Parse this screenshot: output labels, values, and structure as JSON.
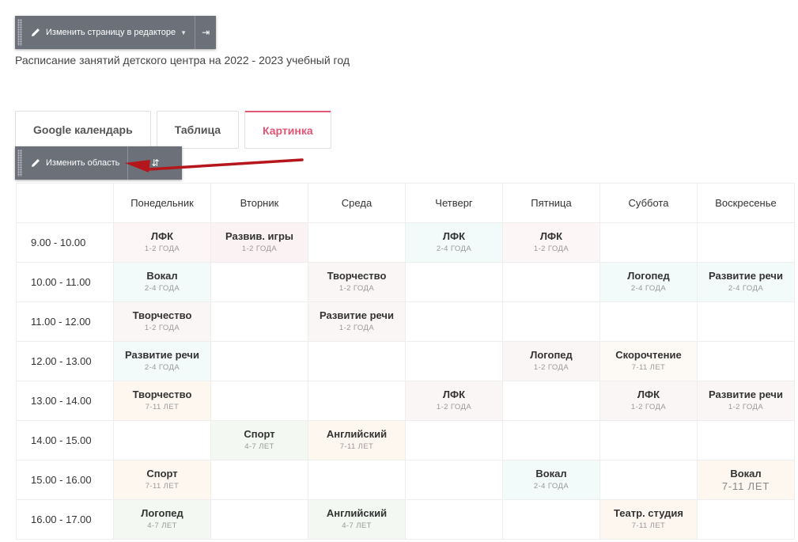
{
  "editor_bar": {
    "edit_page_label": "Изменить страницу в редакторе"
  },
  "area_bar": {
    "edit_area_label": "Изменить область"
  },
  "subtitle": "Расписание занятий детского центра на 2022 - 2023 учебный год",
  "tabs": [
    {
      "label": "Google календарь",
      "active": false
    },
    {
      "label": "Таблица",
      "active": false
    },
    {
      "label": "Картинка",
      "active": true
    }
  ],
  "colors": {
    "accent": "#e25575",
    "toolbar": "#6b7079",
    "arrow": "#b5161c"
  },
  "schedule": {
    "days": [
      "Понедельник",
      "Вторник",
      "Среда",
      "Четверг",
      "Пятница",
      "Суббота",
      "Воскресенье"
    ],
    "rows": [
      {
        "time": "9.00 - 10.00",
        "cells": [
          {
            "title": "ЛФК",
            "age": "1-2 ГОДА",
            "bg": "#fdf6f6"
          },
          {
            "title": "Развив. игры",
            "age": "1-2 ГОДА",
            "bg": "#fbf3f3"
          },
          null,
          {
            "title": "ЛФК",
            "age": "2-4 ГОДА",
            "bg": "#f2fafa"
          },
          {
            "title": "ЛФК",
            "age": "1-2 ГОДА",
            "bg": "#fdf6f6"
          },
          null,
          null
        ]
      },
      {
        "time": "10.00 - 11.00",
        "cells": [
          {
            "title": "Вокал",
            "age": "2-4 ГОДА",
            "bg": "#f2fafa"
          },
          null,
          {
            "title": "Творчество",
            "age": "1-2 ГОДА",
            "bg": "#fbf6f6"
          },
          null,
          null,
          {
            "title": "Логопед",
            "age": "2-4 ГОДА",
            "bg": "#f2fafa"
          },
          {
            "title": "Развитие речи",
            "age": "2-4 ГОДА",
            "bg": "#f3fafa"
          }
        ]
      },
      {
        "time": "11.00 - 12.00",
        "cells": [
          {
            "title": "Творчество",
            "age": "1-2 ГОДА",
            "bg": "#fbf6f6"
          },
          null,
          {
            "title": "Развитие речи",
            "age": "1-2 ГОДА",
            "bg": "#fbf6f6"
          },
          null,
          null,
          null,
          null
        ]
      },
      {
        "time": "12.00 - 13.00",
        "cells": [
          {
            "title": "Развитие речи",
            "age": "2-4 ГОДА",
            "bg": "#f2fafa"
          },
          null,
          null,
          null,
          {
            "title": "Логопед",
            "age": "1-2 ГОДА",
            "bg": "#fbf6f6"
          },
          {
            "title": "Скорочтение",
            "age": "7-11 ЛЕТ",
            "bg": "#fdfaf6"
          },
          null
        ]
      },
      {
        "time": "13.00 - 14.00",
        "cells": [
          {
            "title": "Творчество",
            "age": "7-11 ЛЕТ",
            "bg": "#fdf7f0"
          },
          null,
          null,
          {
            "title": "ЛФК",
            "age": "1-2 ГОДА",
            "bg": "#fbf6f6"
          },
          null,
          {
            "title": "ЛФК",
            "age": "1-2 ГОДА",
            "bg": "#fbf6f6"
          },
          {
            "title": "Развитие речи",
            "age": "1-2 ГОДА",
            "bg": "#fbf6f6"
          }
        ]
      },
      {
        "time": "14.00 - 15.00",
        "cells": [
          null,
          {
            "title": "Спорт",
            "age": "4-7 ЛЕТ",
            "bg": "#f3f8f3"
          },
          {
            "title": "Английский",
            "age": "7-11 ЛЕТ",
            "bg": "#fdf7f0"
          },
          null,
          null,
          null,
          null
        ]
      },
      {
        "time": "15.00 - 16.00",
        "cells": [
          {
            "title": "Спорт",
            "age": "7-11 ЛЕТ",
            "bg": "#fdf7f0"
          },
          null,
          null,
          null,
          {
            "title": "Вокал",
            "age": "2-4 ГОДА",
            "bg": "#f2fafa"
          },
          null,
          {
            "title": "Вокал",
            "age": "7-11 ЛЕТ",
            "bg": "#fdf7f0",
            "big": true
          }
        ]
      },
      {
        "time": "16.00 - 17.00",
        "cells": [
          {
            "title": "Логопед",
            "age": "4-7 ЛЕТ",
            "bg": "#f3f8f3"
          },
          null,
          {
            "title": "Английский",
            "age": "4-7 ЛЕТ",
            "bg": "#f3f8f3"
          },
          null,
          null,
          {
            "title": "Театр. студия",
            "age": "7-11 ЛЕТ",
            "bg": "#fdf7f0"
          },
          null
        ]
      }
    ]
  }
}
